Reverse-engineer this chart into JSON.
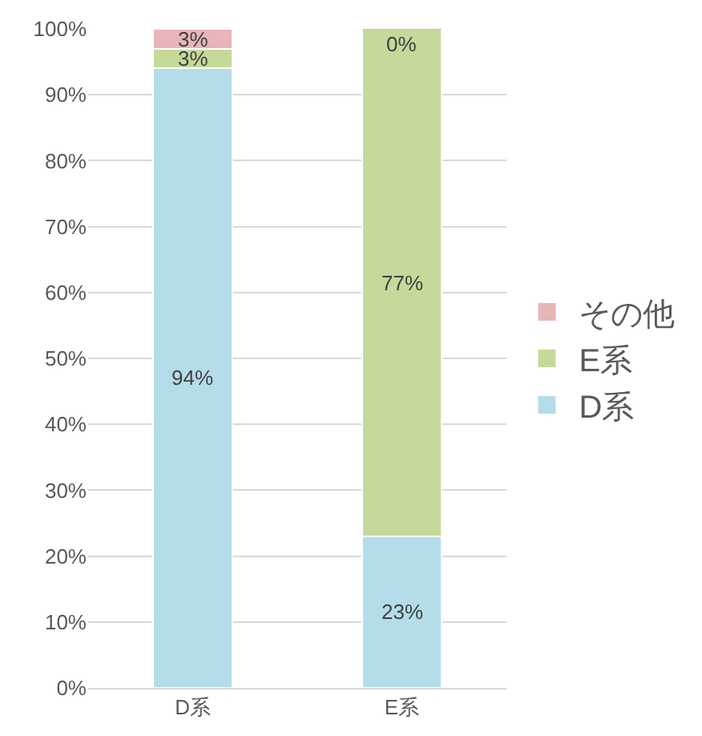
{
  "chart_data": {
    "type": "bar",
    "stacked": true,
    "categories": [
      "D系",
      "E系"
    ],
    "series": [
      {
        "name": "D系",
        "color": "#b4dde9",
        "values": [
          94,
          23
        ],
        "value_labels": [
          "94%",
          "23%"
        ]
      },
      {
        "name": "E系",
        "color": "#c5da9a",
        "values": [
          3,
          77
        ],
        "value_labels": [
          "3%",
          "77%"
        ]
      },
      {
        "name": "その他",
        "color": "#e8b5b8",
        "values": [
          3,
          0
        ],
        "value_labels": [
          "3%",
          "0%"
        ]
      }
    ],
    "ylim": [
      0,
      100
    ],
    "yticks": [
      {
        "value": 0,
        "label": "0%"
      },
      {
        "value": 10,
        "label": "10%"
      },
      {
        "value": 20,
        "label": "20%"
      },
      {
        "value": 30,
        "label": "30%"
      },
      {
        "value": 40,
        "label": "40%"
      },
      {
        "value": 50,
        "label": "50%"
      },
      {
        "value": 60,
        "label": "60%"
      },
      {
        "value": 70,
        "label": "70%"
      },
      {
        "value": 80,
        "label": "80%"
      },
      {
        "value": 90,
        "label": "90%"
      },
      {
        "value": 100,
        "label": "100%"
      }
    ],
    "grid": "y",
    "legend": "right"
  }
}
